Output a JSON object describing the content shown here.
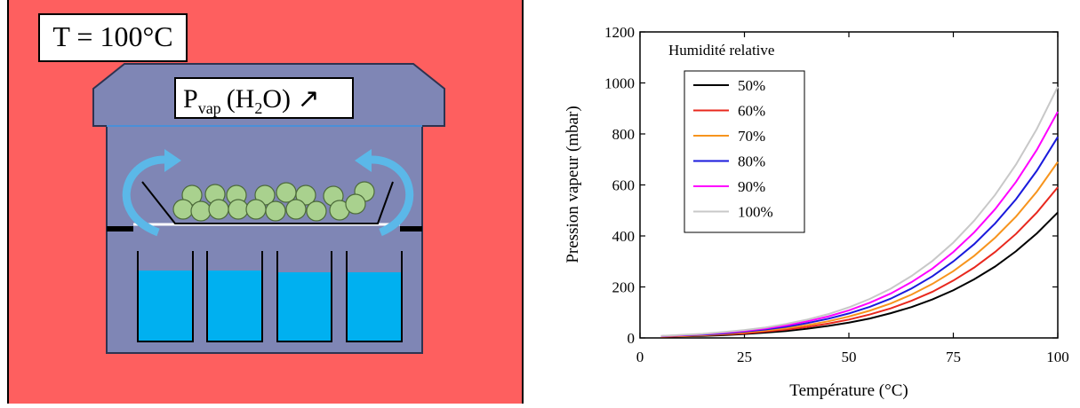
{
  "diagram": {
    "temperature_label": "T = 100°C",
    "pressure_label": {
      "symbol": "P",
      "subscript": "vap",
      "formula_start": "(H",
      "formula_subscript": "2",
      "formula_end": "O) ↗"
    }
  },
  "chart_data": {
    "type": "line",
    "x_label": "Température (°C)",
    "y_label": "Pression vapeur (mbar)",
    "legend_title": "Humidité relative",
    "x": [
      5,
      10,
      15,
      20,
      25,
      30,
      35,
      40,
      45,
      50,
      55,
      60,
      65,
      70,
      75,
      80,
      85,
      90,
      95,
      100
    ],
    "series": [
      {
        "name": "50%",
        "color": "#000000",
        "values": [
          4,
          6,
          8,
          11,
          15,
          21,
          27,
          36,
          47,
          60,
          76,
          97,
          121,
          151,
          187,
          230,
          280,
          340,
          410,
          492
        ]
      },
      {
        "name": "60%",
        "color": "#e8281e",
        "values": [
          5,
          7,
          10,
          14,
          18,
          25,
          33,
          43,
          56,
          72,
          92,
          116,
          146,
          181,
          225,
          276,
          337,
          408,
          492,
          591
        ]
      },
      {
        "name": "70%",
        "color": "#f7941d",
        "values": [
          6,
          8,
          11,
          16,
          22,
          29,
          38,
          50,
          65,
          84,
          107,
          135,
          170,
          212,
          262,
          322,
          393,
          476,
          574,
          690
        ]
      },
      {
        "name": "80%",
        "color": "#1a1adc",
        "values": [
          7,
          10,
          13,
          18,
          25,
          33,
          44,
          58,
          75,
          96,
          122,
          154,
          194,
          242,
          300,
          368,
          449,
          544,
          656,
          788
        ]
      },
      {
        "name": "90%",
        "color": "#ff00ff",
        "values": [
          7,
          11,
          15,
          21,
          28,
          37,
          49,
          65,
          84,
          108,
          138,
          174,
          219,
          272,
          337,
          414,
          505,
          612,
          738,
          887
        ]
      },
      {
        "name": "100%",
        "color": "#c8c8c8",
        "values": [
          8,
          12,
          16,
          23,
          31,
          41,
          55,
          72,
          93,
          120,
          153,
          193,
          243,
          302,
          374,
          460,
          561,
          680,
          820,
          985
        ]
      }
    ],
    "xlim": [
      0,
      100
    ],
    "xticks": [
      0,
      25,
      50,
      75,
      100
    ],
    "ylim": [
      0,
      1200
    ],
    "yticks": [
      0,
      200,
      400,
      600,
      800,
      1000,
      1200
    ],
    "legend": "upper left"
  }
}
